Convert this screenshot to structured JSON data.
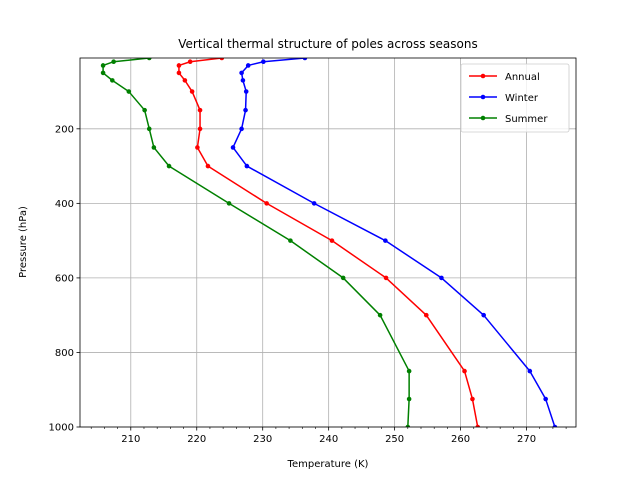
{
  "chart_data": {
    "type": "line",
    "title": "Vertical thermal structure of poles across seasons",
    "xlabel": "Temperature (K)",
    "ylabel": "Pressure (hPa)",
    "xlim": [
      202.3,
      277.5
    ],
    "ylim": [
      1000,
      10
    ],
    "y_inverted": true,
    "grid": true,
    "legend_position": "top-right",
    "xticks": [
      210,
      220,
      230,
      240,
      250,
      260,
      270
    ],
    "yticks": [
      200,
      400,
      600,
      800,
      1000
    ],
    "x_minor_step": 2,
    "pressure_levels": [
      10,
      20,
      30,
      50,
      70,
      100,
      150,
      200,
      250,
      300,
      400,
      500,
      600,
      700,
      850,
      925,
      1000
    ],
    "series": [
      {
        "name": "Annual",
        "color": "#ff0000",
        "x": [
          223.8,
          219.0,
          217.3,
          217.3,
          218.2,
          219.3,
          220.5,
          220.5,
          220.1,
          221.7,
          230.6,
          240.5,
          248.7,
          254.8,
          260.6,
          261.8,
          262.6
        ],
        "y": [
          10,
          20,
          30,
          50,
          70,
          100,
          150,
          200,
          250,
          300,
          400,
          500,
          600,
          700,
          850,
          925,
          1000
        ]
      },
      {
        "name": "Winter",
        "color": "#0000ff",
        "x": [
          236.4,
          230.1,
          227.8,
          226.8,
          227.0,
          227.5,
          227.4,
          226.8,
          225.5,
          227.6,
          237.8,
          248.6,
          257.1,
          263.5,
          270.5,
          272.9,
          274.3
        ],
        "y": [
          10,
          20,
          30,
          50,
          70,
          100,
          150,
          200,
          250,
          300,
          400,
          500,
          600,
          700,
          850,
          925,
          1000
        ]
      },
      {
        "name": "Summer",
        "color": "#008000",
        "x": [
          212.8,
          207.4,
          205.8,
          205.8,
          207.2,
          209.7,
          212.1,
          212.8,
          213.5,
          215.8,
          224.9,
          234.2,
          242.2,
          247.8,
          252.2,
          252.2,
          252.0
        ],
        "y": [
          10,
          20,
          30,
          50,
          70,
          100,
          150,
          200,
          250,
          300,
          400,
          500,
          600,
          700,
          850,
          925,
          1000
        ]
      }
    ]
  }
}
